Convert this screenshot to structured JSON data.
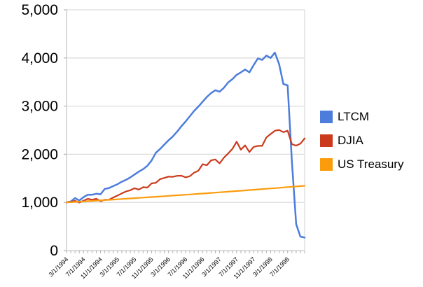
{
  "chart_data": {
    "type": "line",
    "title": "",
    "xlabel": "",
    "ylabel": "",
    "ylim": [
      0,
      5000
    ],
    "y_ticks": [
      0,
      1000,
      2000,
      3000,
      4000,
      5000
    ],
    "y_tick_labels": [
      "0",
      "1,000",
      "2,000",
      "3,000",
      "4,000",
      "5,000"
    ],
    "x_label_every": 4,
    "x_last_labeled_index": 52,
    "grid": "horizontal",
    "legend_position": "right",
    "months": [
      "3/1/1994",
      "4/1/1994",
      "5/1/1994",
      "6/1/1994",
      "7/1/1994",
      "8/1/1994",
      "9/1/1994",
      "10/1/1994",
      "11/1/1994",
      "12/1/1994",
      "1/1/1995",
      "2/1/1995",
      "3/1/1995",
      "4/1/1995",
      "5/1/1995",
      "6/1/1995",
      "7/1/1995",
      "8/1/1995",
      "9/1/1995",
      "10/1/1995",
      "11/1/1995",
      "12/1/1995",
      "1/1/1996",
      "2/1/1996",
      "3/1/1996",
      "4/1/1996",
      "5/1/1996",
      "6/1/1996",
      "7/1/1996",
      "8/1/1996",
      "9/1/1996",
      "10/1/1996",
      "11/1/1996",
      "12/1/1996",
      "1/1/1997",
      "2/1/1997",
      "3/1/1997",
      "4/1/1997",
      "5/1/1997",
      "6/1/1997",
      "7/1/1997",
      "8/1/1997",
      "9/1/1997",
      "10/1/1997",
      "11/1/1997",
      "12/1/1997",
      "1/1/1998",
      "2/1/1998",
      "3/1/1998",
      "4/1/1998",
      "5/1/1998",
      "6/1/1998",
      "7/1/1998",
      "8/1/1998",
      "9/1/1998",
      "10/1/1998",
      "11/1/1998"
    ],
    "x_tick_labels_shown": [
      "3/1/1994",
      "7/1/1994",
      "11/1/1994",
      "3/1/1995",
      "7/1/1995",
      "11/1/1995",
      "3/1/1996",
      "7/1/1996",
      "11/1/1996",
      "3/1/1997",
      "7/1/1997",
      "11/1/1997",
      "3/1/1998",
      "7/1/1998"
    ],
    "series": [
      {
        "name": "LTCM",
        "color": "#4C7DDC",
        "values": [
          1000,
          1020,
          1090,
          1040,
          1110,
          1160,
          1160,
          1180,
          1170,
          1280,
          1300,
          1340,
          1380,
          1430,
          1470,
          1520,
          1580,
          1640,
          1690,
          1760,
          1870,
          2030,
          2110,
          2200,
          2290,
          2370,
          2470,
          2580,
          2680,
          2790,
          2900,
          2990,
          3090,
          3190,
          3270,
          3330,
          3300,
          3380,
          3490,
          3560,
          3650,
          3700,
          3760,
          3700,
          3850,
          3990,
          3960,
          4050,
          4000,
          4110,
          3870,
          3460,
          3430,
          1850,
          550,
          290,
          270
        ]
      },
      {
        "name": "DJIA",
        "color": "#CB3A1C",
        "values": [
          1000,
          1013,
          1034,
          997,
          1036,
          1076,
          1057,
          1075,
          1028,
          1055,
          1057,
          1103,
          1144,
          1188,
          1228,
          1253,
          1295,
          1268,
          1317,
          1308,
          1396,
          1407,
          1484,
          1509,
          1537,
          1532,
          1552,
          1555,
          1521,
          1545,
          1618,
          1658,
          1794,
          1773,
          1874,
          1892,
          1811,
          1928,
          2016,
          2110,
          2262,
          2096,
          2185,
          2047,
          2152,
          2175,
          2175,
          2351,
          2420,
          2490,
          2505,
          2460,
          2490,
          2210,
          2180,
          2220,
          2330
        ]
      },
      {
        "name": "US Treasury",
        "color": "#FB9C0C",
        "values": [
          1000,
          1005,
          1011,
          1016,
          1021,
          1027,
          1032,
          1038,
          1043,
          1049,
          1054,
          1060,
          1066,
          1071,
          1077,
          1083,
          1089,
          1094,
          1100,
          1106,
          1112,
          1118,
          1124,
          1130,
          1136,
          1142,
          1148,
          1154,
          1160,
          1166,
          1173,
          1179,
          1185,
          1191,
          1198,
          1204,
          1211,
          1217,
          1224,
          1230,
          1237,
          1243,
          1250,
          1257,
          1263,
          1270,
          1277,
          1284,
          1290,
          1297,
          1304,
          1311,
          1318,
          1325,
          1332,
          1339,
          1346
        ]
      }
    ]
  },
  "legend": {
    "items": [
      "LTCM",
      "DJIA",
      "US Treasury"
    ]
  }
}
